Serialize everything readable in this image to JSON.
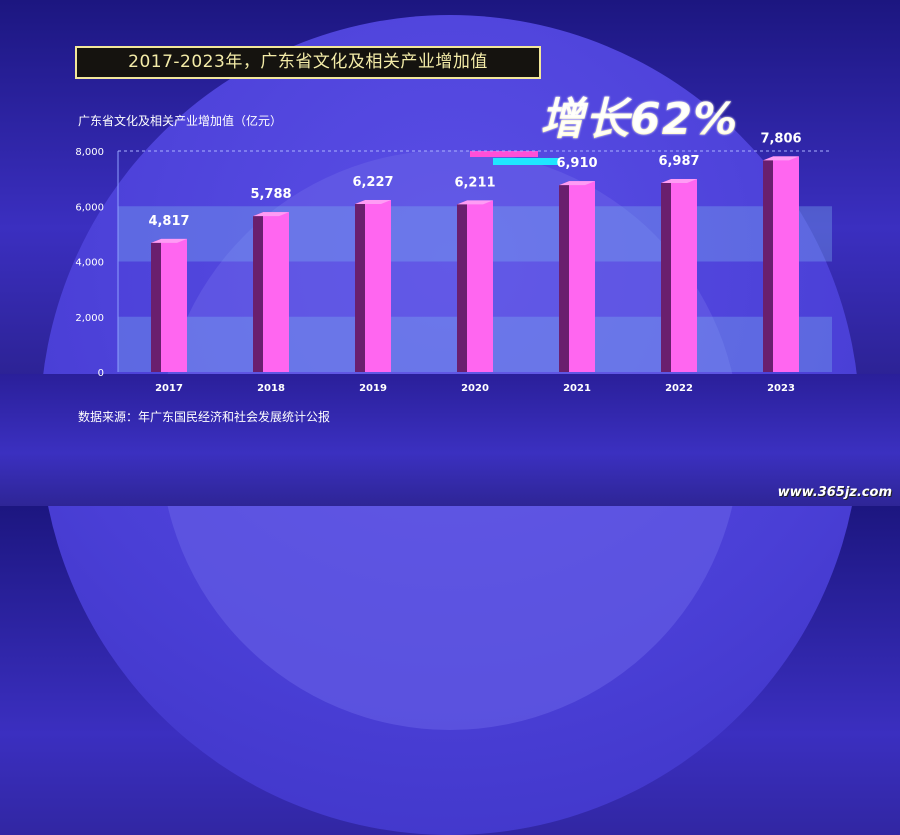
{
  "title": "2017-2023年，广东省文化及相关产业增加值",
  "growth_badge": "增长62%",
  "source": "数据来源：年广东国民经济和社会发展统计公报",
  "watermark": "www.365jz.com",
  "colors": {
    "bar_front": "#ff66f0",
    "bar_side": "#6a1f6e",
    "bar_top": "#ff9cf5",
    "title_border": "#f2e79a"
  },
  "chart_data": {
    "type": "bar",
    "title": "",
    "ylabel": "广东省文化及相关产业增加值（亿元）",
    "xlabel": "",
    "categories": [
      "2017",
      "2018",
      "2019",
      "2020",
      "2021",
      "2022",
      "2023"
    ],
    "values": [
      4817,
      5788,
      6227,
      6211,
      6910,
      6987,
      7806
    ],
    "value_labels": [
      "4,817",
      "5,788",
      "6,227",
      "6,211",
      "6,910",
      "6,987",
      "7,806"
    ],
    "ylim": [
      0,
      8000
    ],
    "yticks": [
      0,
      2000,
      4000,
      6000,
      8000
    ],
    "ytick_labels": [
      "0",
      "2,000",
      "4,000",
      "6,000",
      "8,000"
    ],
    "grid": "alternating bands",
    "legend": "none"
  }
}
